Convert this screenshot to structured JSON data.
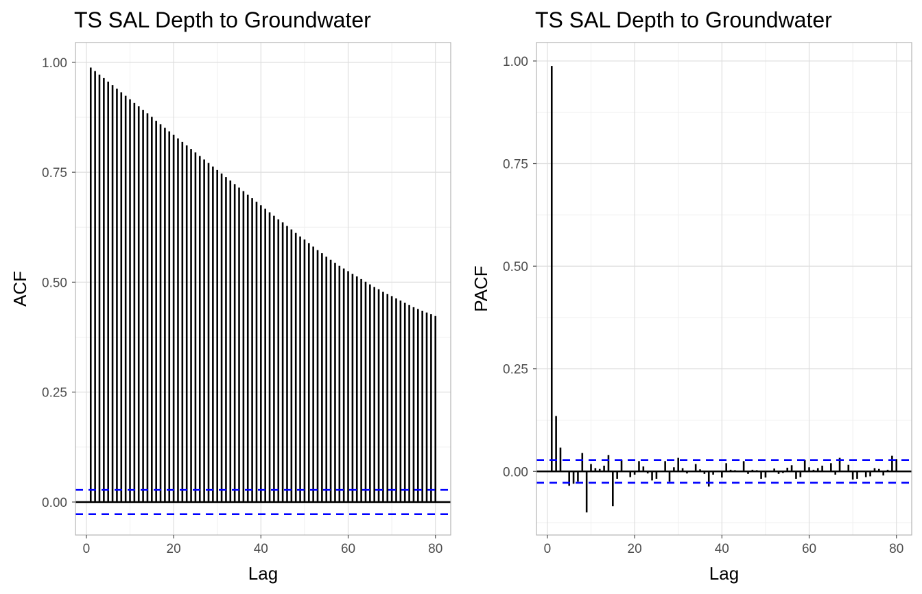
{
  "chart_data": [
    {
      "type": "bar",
      "subtype": "acf-correlogram",
      "title": "TS SAL Depth to Groundwater",
      "xlabel": "Lag",
      "ylabel": "ACF",
      "xlim": [
        -2.5,
        83.5
      ],
      "ylim": [
        -0.075,
        1.045
      ],
      "x_ticks": [
        0,
        20,
        40,
        60,
        80
      ],
      "x_tick_labels": [
        "0",
        "20",
        "40",
        "60",
        "80"
      ],
      "y_ticks": [
        0,
        0.25,
        0.5,
        0.75,
        1
      ],
      "y_tick_labels": [
        "0.00",
        "0.25",
        "0.50",
        "0.75",
        "1.00"
      ],
      "grid": true,
      "confidence_bound": 0.0277,
      "colors": {
        "bars": "#000000",
        "confidence": "#0000ff",
        "grid": "#dedede",
        "panel_border": "#b3b3b3"
      },
      "lags": [
        1,
        2,
        3,
        4,
        5,
        6,
        7,
        8,
        9,
        10,
        11,
        12,
        13,
        14,
        15,
        16,
        17,
        18,
        19,
        20,
        21,
        22,
        23,
        24,
        25,
        26,
        27,
        28,
        29,
        30,
        31,
        32,
        33,
        34,
        35,
        36,
        37,
        38,
        39,
        40,
        41,
        42,
        43,
        44,
        45,
        46,
        47,
        48,
        49,
        50,
        51,
        52,
        53,
        54,
        55,
        56,
        57,
        58,
        59,
        60,
        61,
        62,
        63,
        64,
        65,
        66,
        67,
        68,
        69,
        70,
        71,
        72,
        73,
        74,
        75,
        76,
        77,
        78,
        79,
        80
      ],
      "values": [
        0.988,
        0.98,
        0.972,
        0.964,
        0.956,
        0.948,
        0.94,
        0.932,
        0.924,
        0.916,
        0.908,
        0.9,
        0.892,
        0.884,
        0.876,
        0.867,
        0.859,
        0.851,
        0.843,
        0.835,
        0.827,
        0.819,
        0.811,
        0.803,
        0.795,
        0.787,
        0.779,
        0.771,
        0.763,
        0.755,
        0.747,
        0.739,
        0.731,
        0.723,
        0.715,
        0.707,
        0.699,
        0.691,
        0.683,
        0.675,
        0.667,
        0.659,
        0.651,
        0.643,
        0.636,
        0.628,
        0.62,
        0.612,
        0.604,
        0.597,
        0.589,
        0.581,
        0.573,
        0.566,
        0.558,
        0.551,
        0.544,
        0.537,
        0.531,
        0.525,
        0.519,
        0.513,
        0.507,
        0.501,
        0.495,
        0.489,
        0.484,
        0.478,
        0.473,
        0.468,
        0.463,
        0.458,
        0.453,
        0.448,
        0.443,
        0.439,
        0.435,
        0.431,
        0.427,
        0.423
      ]
    },
    {
      "type": "bar",
      "subtype": "pacf-correlogram",
      "title": "TS SAL Depth to Groundwater",
      "xlabel": "Lag",
      "ylabel": "PACF",
      "xlim": [
        -2.5,
        83.5
      ],
      "ylim": [
        -0.155,
        1.045
      ],
      "x_ticks": [
        0,
        20,
        40,
        60,
        80
      ],
      "x_tick_labels": [
        "0",
        "20",
        "40",
        "60",
        "80"
      ],
      "y_ticks": [
        0,
        0.25,
        0.5,
        0.75,
        1
      ],
      "y_tick_labels": [
        "0.00",
        "0.25",
        "0.50",
        "0.75",
        "1.00"
      ],
      "grid": true,
      "confidence_bound": 0.0277,
      "colors": {
        "bars": "#000000",
        "confidence": "#0000ff",
        "grid": "#dedede",
        "panel_border": "#b3b3b3"
      },
      "lags": [
        1,
        2,
        3,
        4,
        5,
        6,
        7,
        8,
        9,
        10,
        11,
        12,
        13,
        14,
        15,
        16,
        17,
        18,
        19,
        20,
        21,
        22,
        23,
        24,
        25,
        26,
        27,
        28,
        29,
        30,
        31,
        32,
        33,
        34,
        35,
        36,
        37,
        38,
        39,
        40,
        41,
        42,
        43,
        44,
        45,
        46,
        47,
        48,
        49,
        50,
        51,
        52,
        53,
        54,
        55,
        56,
        57,
        58,
        59,
        60,
        61,
        62,
        63,
        64,
        65,
        66,
        67,
        68,
        69,
        70,
        71,
        72,
        73,
        74,
        75,
        76,
        77,
        78,
        79,
        80
      ],
      "values": [
        0.988,
        0.135,
        0.058,
        0.002,
        -0.035,
        -0.03,
        -0.025,
        0.045,
        -0.1,
        0.018,
        0.008,
        0.006,
        0.014,
        0.04,
        -0.085,
        -0.018,
        0.028,
        0.002,
        -0.014,
        -0.008,
        0.025,
        0.012,
        -0.005,
        -0.022,
        -0.018,
        0.002,
        0.025,
        -0.025,
        0.01,
        0.033,
        0.008,
        -0.005,
        0.002,
        0.018,
        0.005,
        -0.006,
        -0.037,
        -0.008,
        0.002,
        -0.015,
        0.02,
        0.004,
        0.003,
        0.002,
        0.025,
        -0.006,
        0.004,
        0.003,
        -0.018,
        -0.015,
        0.002,
        0.007,
        -0.006,
        -0.004,
        0.009,
        0.015,
        -0.018,
        -0.014,
        0.028,
        0.01,
        0.004,
        0.008,
        0.014,
        0.001,
        0.02,
        -0.008,
        0.033,
        0.002,
        0.016,
        -0.02,
        -0.018,
        0.002,
        -0.014,
        -0.012,
        0.008,
        0.006,
        -0.01,
        0.004,
        0.038,
        0.03
      ]
    }
  ]
}
